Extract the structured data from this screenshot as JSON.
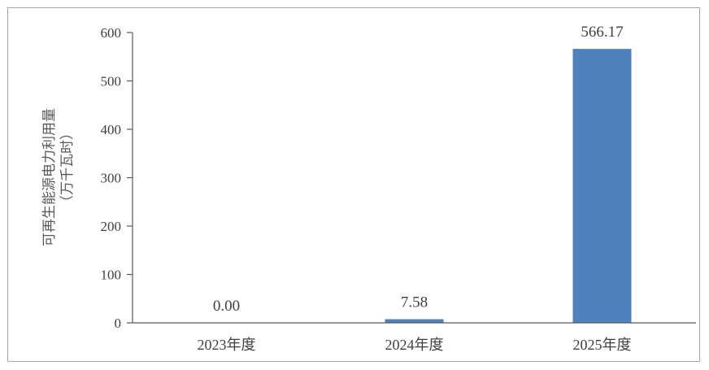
{
  "chart_data": {
    "type": "bar",
    "categories": [
      "2023年度",
      "2024年度",
      "2025年度"
    ],
    "values": [
      0.0,
      7.58,
      566.17
    ],
    "data_labels": [
      "0.00",
      "7.58",
      "566.17"
    ],
    "title": "",
    "xlabel": "",
    "ylabel": "可再生能源电力利用量",
    "ylabel_unit": "（万千瓦时）",
    "ylim": [
      0,
      600
    ],
    "yticks": [
      "0",
      "100",
      "200",
      "300",
      "400",
      "500",
      "600"
    ],
    "grid": false,
    "legend": "none",
    "bar_color": "#4f81bd",
    "axis_color": "#595959"
  }
}
